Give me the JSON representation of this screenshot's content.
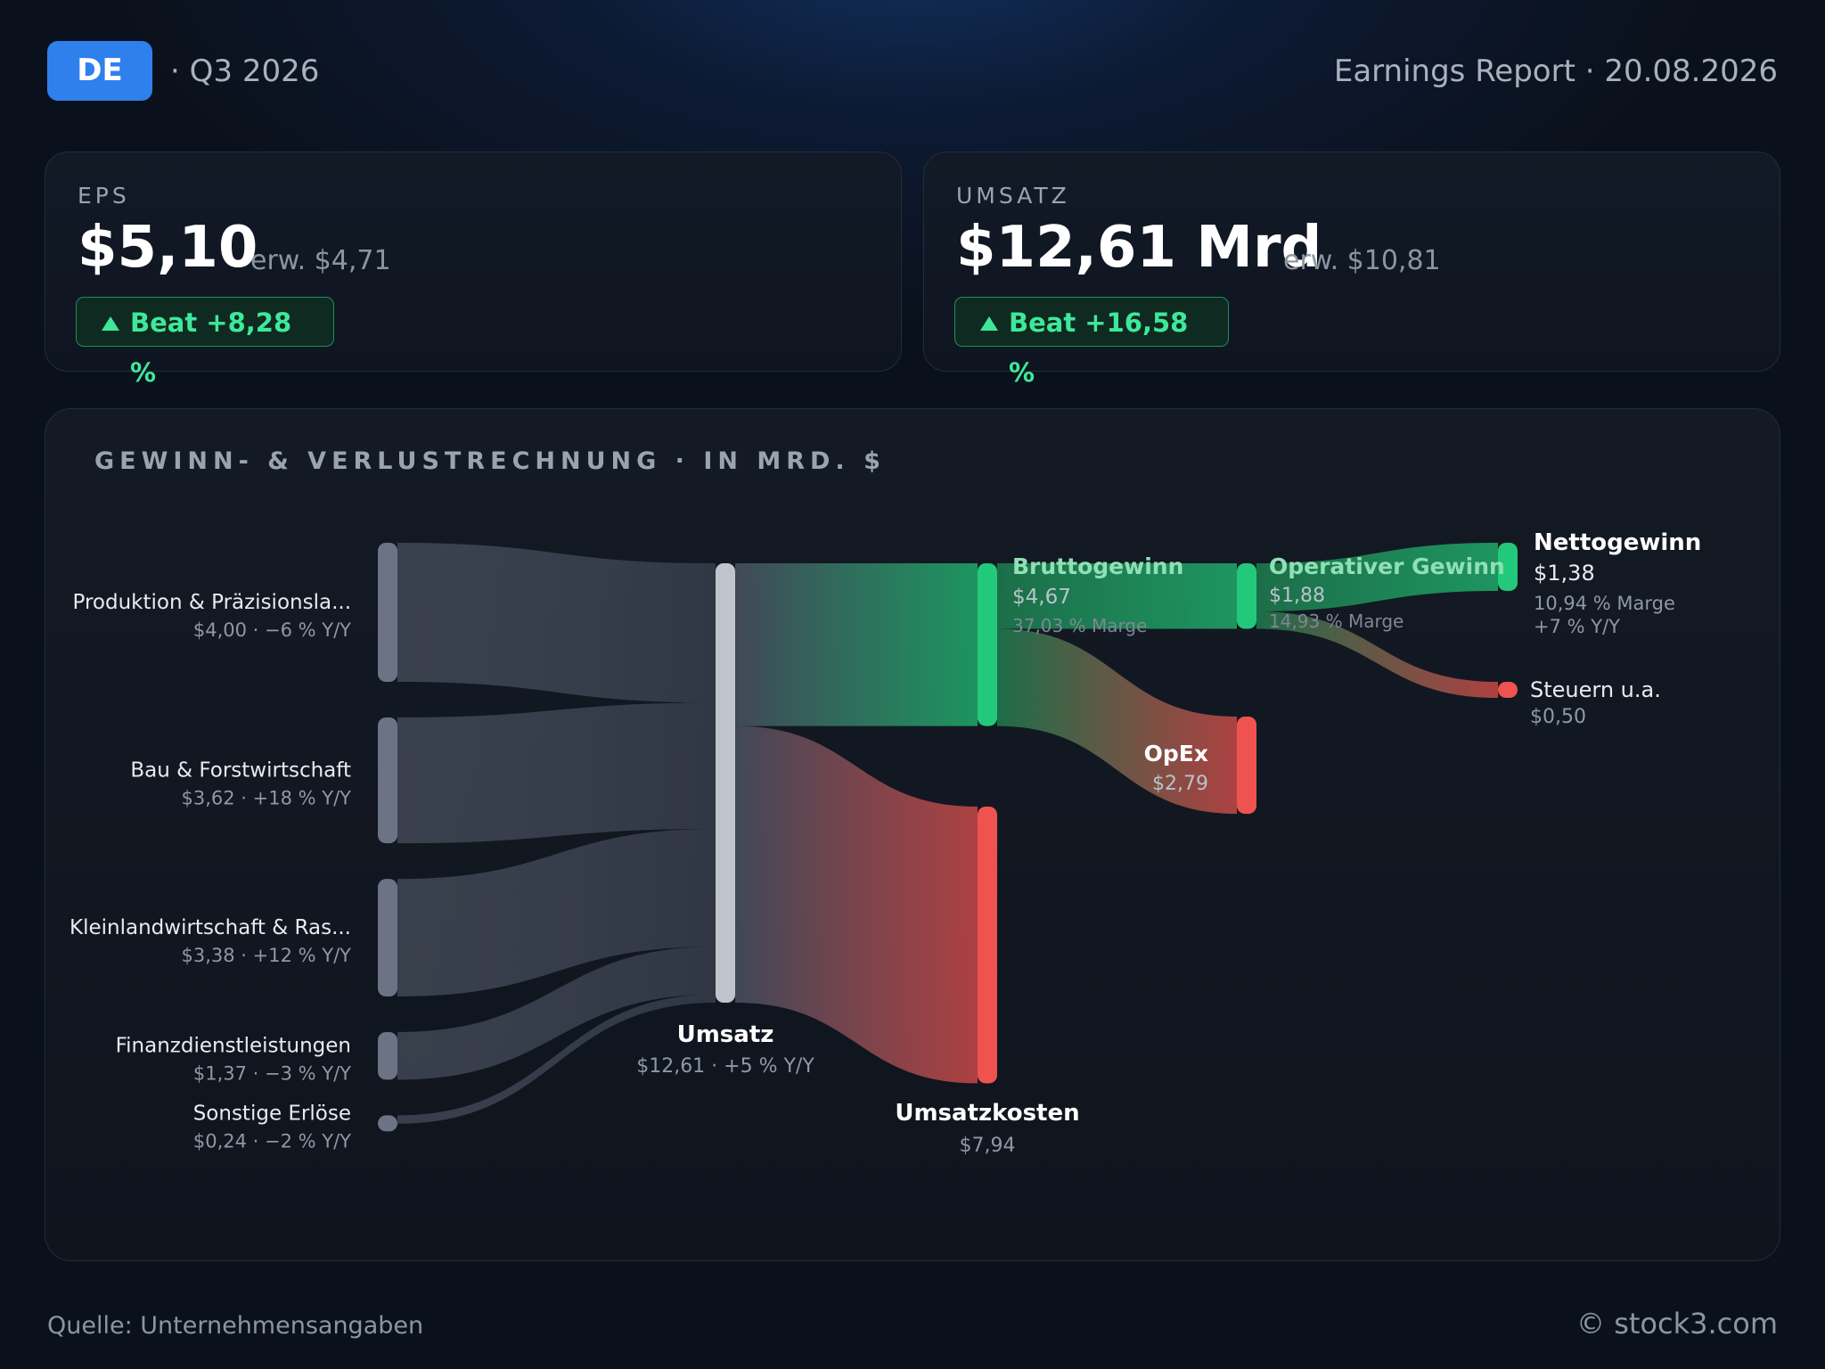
{
  "header": {
    "ticker": "DE",
    "period": "· Q3 2026",
    "report": "Earnings Report · 20.08.2026"
  },
  "eps": {
    "label": "EPS",
    "value": "$5,10",
    "estimate": "erw. $4,71",
    "badge": "Beat +8,28 %"
  },
  "revenue": {
    "label": "UMSATZ",
    "value": "$12,61 Mrd",
    "estimate": "erw. $10,81",
    "badge": "Beat +16,58 %"
  },
  "panel": {
    "title": "GEWINN- & VERLUSTRECHNUNG · IN MRD. $"
  },
  "footer": {
    "source": "Quelle: Unternehmensangaben",
    "brand": "© stock3.com"
  },
  "colors": {
    "accent": "#2f80ed",
    "positive": "#22c97a",
    "negative": "#ef5350",
    "segment": "#6b7385",
    "revenue_node": "#c0c4cd"
  },
  "chart_data": {
    "type": "sankey",
    "title": "GEWINN- & VERLUSTRECHNUNG · IN MRD. $",
    "unit": "Mrd. $",
    "nodes": [
      {
        "id": "seg1",
        "name": "Produktion & Präzisionsla...",
        "value": 4.0,
        "label": "$4,00 · −6 % Y/Y",
        "kind": "segment"
      },
      {
        "id": "seg2",
        "name": "Bau & Forstwirtschaft",
        "value": 3.62,
        "label": "$3,62 · +18 % Y/Y",
        "kind": "segment"
      },
      {
        "id": "seg3",
        "name": "Kleinlandwirtschaft & Ras...",
        "value": 3.38,
        "label": "$3,38 · +12 % Y/Y",
        "kind": "segment"
      },
      {
        "id": "seg4",
        "name": "Finanzdienstleistungen",
        "value": 1.37,
        "label": "$1,37 · −3 % Y/Y",
        "kind": "segment"
      },
      {
        "id": "seg5",
        "name": "Sonstige Erlöse",
        "value": 0.24,
        "label": "$0,24 · −2 % Y/Y",
        "kind": "segment"
      },
      {
        "id": "rev",
        "name": "Umsatz",
        "value": 12.61,
        "label": "$12,61 · +5 % Y/Y",
        "kind": "revenue"
      },
      {
        "id": "gp",
        "name": "Bruttogewinn",
        "value": 4.67,
        "label": "$4,67",
        "sub": "37,03 % Marge",
        "kind": "profit"
      },
      {
        "id": "cogs",
        "name": "Umsatzkosten",
        "value": 7.94,
        "label": "$7,94",
        "kind": "cost"
      },
      {
        "id": "op",
        "name": "Operativer Gewinn",
        "value": 1.88,
        "label": "$1,88",
        "sub": "14,93 % Marge",
        "kind": "profit"
      },
      {
        "id": "opex",
        "name": "OpEx",
        "value": 2.79,
        "label": "$2,79",
        "kind": "cost"
      },
      {
        "id": "net",
        "name": "Nettogewinn",
        "value": 1.38,
        "label": "$1,38",
        "sub": "10,94 % Marge",
        "sub2": "+7 % Y/Y",
        "kind": "profit"
      },
      {
        "id": "tax",
        "name": "Steuern u.a.",
        "value": 0.5,
        "label": "$0,50",
        "kind": "cost"
      }
    ],
    "links": [
      {
        "source": "seg1",
        "target": "rev",
        "value": 4.0
      },
      {
        "source": "seg2",
        "target": "rev",
        "value": 3.62
      },
      {
        "source": "seg3",
        "target": "rev",
        "value": 3.38
      },
      {
        "source": "seg4",
        "target": "rev",
        "value": 1.37
      },
      {
        "source": "seg5",
        "target": "rev",
        "value": 0.24
      },
      {
        "source": "rev",
        "target": "gp",
        "value": 4.67
      },
      {
        "source": "rev",
        "target": "cogs",
        "value": 7.94
      },
      {
        "source": "gp",
        "target": "op",
        "value": 1.88
      },
      {
        "source": "gp",
        "target": "opex",
        "value": 2.79
      },
      {
        "source": "op",
        "target": "net",
        "value": 1.38
      },
      {
        "source": "op",
        "target": "tax",
        "value": 0.5
      }
    ]
  }
}
